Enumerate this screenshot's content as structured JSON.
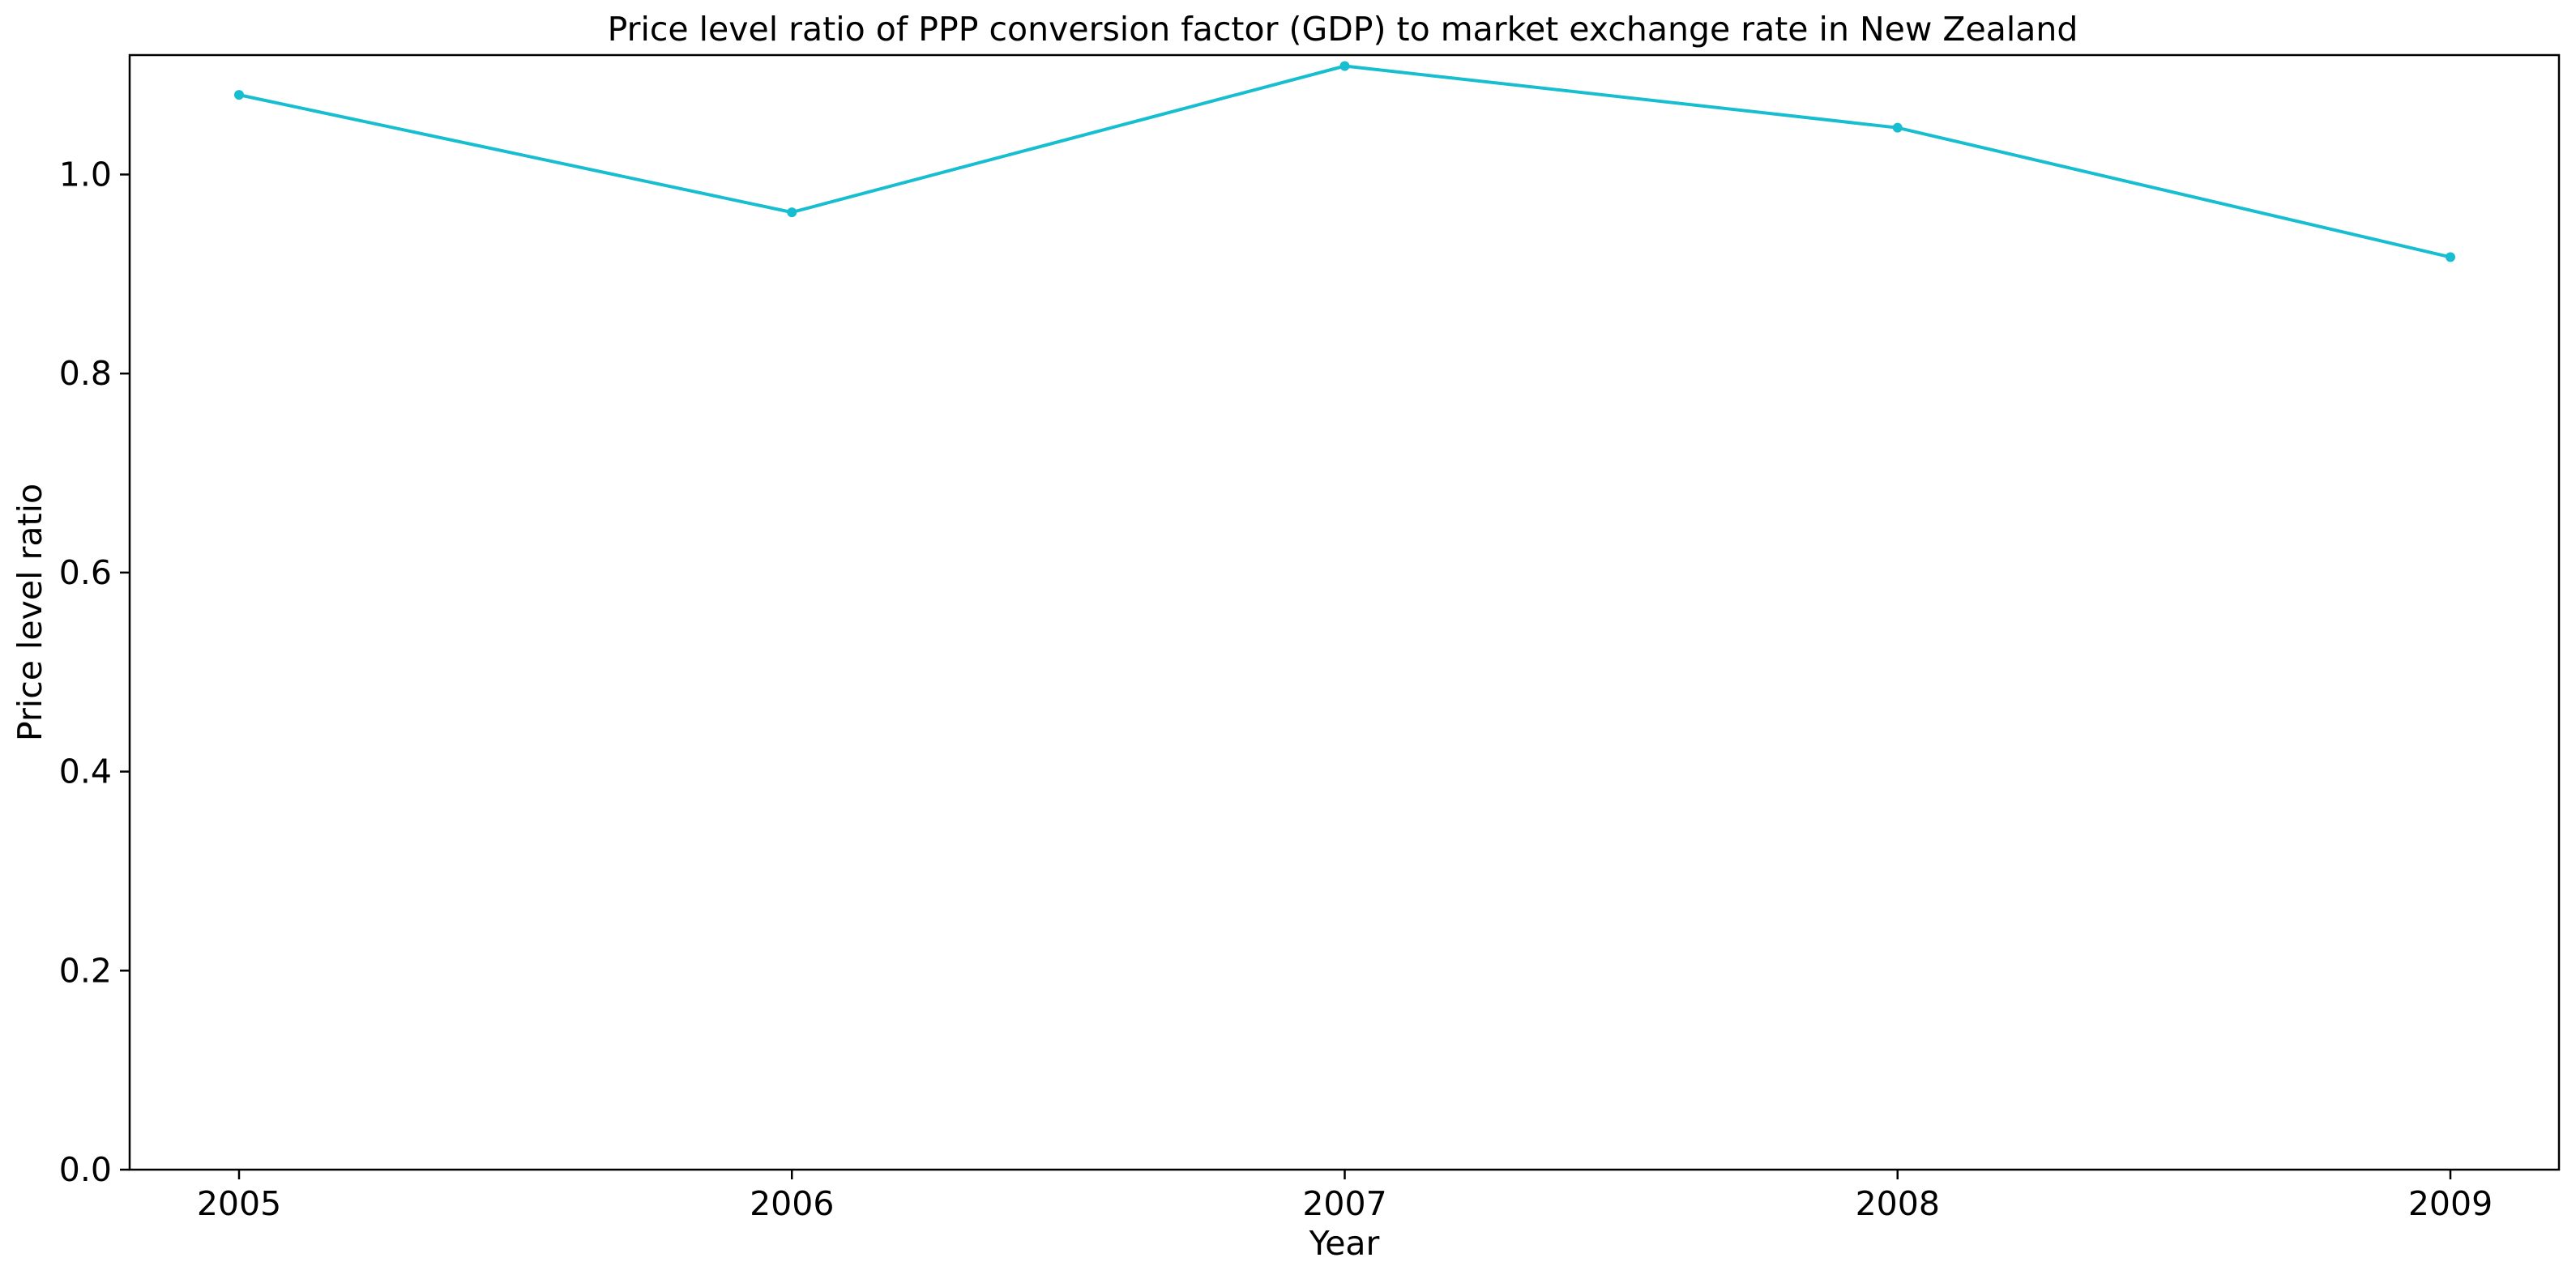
{
  "chart_data": {
    "type": "line",
    "title": "Price level ratio of PPP conversion factor (GDP) to market exchange rate in New Zealand",
    "xlabel": "Year",
    "ylabel": "Price level ratio",
    "x": [
      "2005",
      "2006",
      "2007",
      "2008",
      "2009"
    ],
    "series": [
      {
        "values": [
          1.08,
          0.962,
          1.109,
          1.047,
          0.917
        ],
        "color": "#17becf"
      }
    ],
    "ylim": [
      0.0,
      1.12
    ],
    "yticks": [
      "0.0",
      "0.2",
      "0.4",
      "0.6",
      "0.8",
      "1.0"
    ],
    "grid": false,
    "legend": "none"
  }
}
